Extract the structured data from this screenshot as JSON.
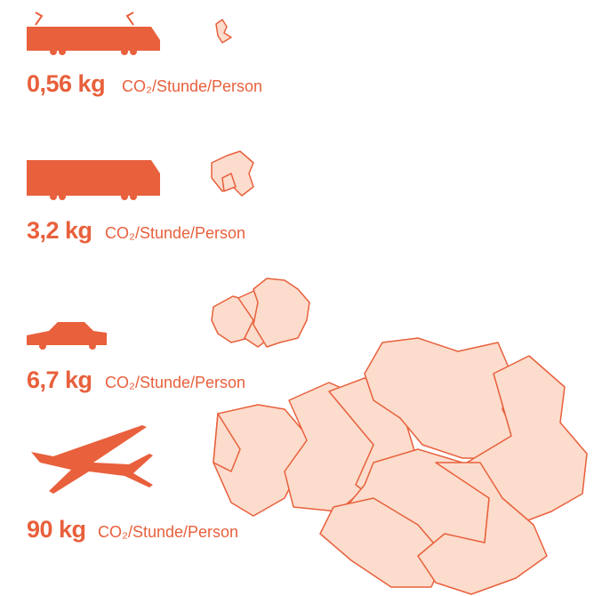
{
  "items": [
    {
      "amount": "0,56 kg",
      "unit": "CO₂/Stunde/Person"
    },
    {
      "amount": "3,2 kg",
      "unit": "CO₂/Stunde/Person"
    },
    {
      "amount": "6,7 kg",
      "unit": "CO₂/Stunde/Person"
    },
    {
      "amount": "90 kg",
      "unit": "CO₂/Stunde/Person"
    }
  ]
}
